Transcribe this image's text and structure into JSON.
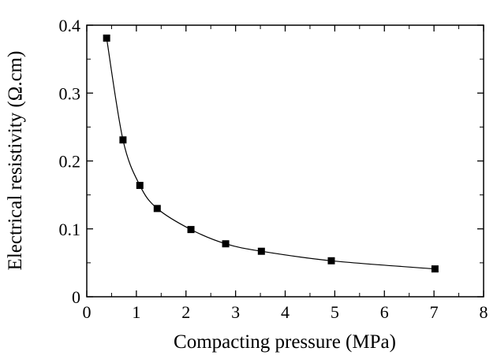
{
  "chart_data": {
    "type": "line",
    "title": "",
    "xlabel": "Compacting pressure (MPa)",
    "ylabel": "Electrical resistivity (Ω.cm)",
    "xlim": [
      0,
      8
    ],
    "ylim": [
      0,
      0.4
    ],
    "x_major_ticks": [
      0,
      1,
      2,
      3,
      4,
      5,
      6,
      7,
      8
    ],
    "x_tick_labels": [
      "0",
      "1",
      "2",
      "3",
      "4",
      "5",
      "6",
      "7",
      "8"
    ],
    "y_major_ticks": [
      0,
      0.1,
      0.2,
      0.3,
      0.4
    ],
    "y_tick_labels": [
      "0",
      "0.1",
      "0.2",
      "0.3",
      "0.4"
    ],
    "x_minor_step": 0.5,
    "y_minor_step": 0.05,
    "grid": false,
    "legend": "none",
    "marker": "filled-square",
    "line_style": "smooth curve",
    "color": "#000000",
    "series": [
      {
        "x": [
          0.4,
          0.73,
          1.07,
          1.42,
          2.1,
          2.8,
          3.52,
          4.93,
          7.02
        ],
        "y": [
          0.381,
          0.231,
          0.164,
          0.13,
          0.099,
          0.078,
          0.067,
          0.053,
          0.041
        ]
      }
    ]
  }
}
